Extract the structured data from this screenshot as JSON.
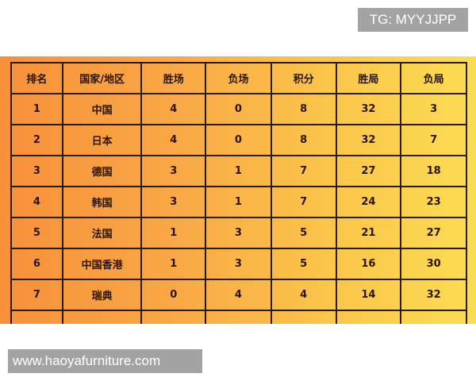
{
  "watermark_top": "TG: MYYJJPP",
  "watermark_bottom": "www.haoyafurniture.com",
  "colors": {
    "gradient_left": "#f7903a",
    "gradient_right": "#fbdd52",
    "watermark_bg": "#a3a3a3"
  },
  "table": {
    "headers": [
      "排名",
      "国家/地区",
      "胜场",
      "负场",
      "积分",
      "胜局",
      "负局"
    ],
    "rows": [
      [
        "1",
        "中国",
        "4",
        "0",
        "8",
        "32",
        "3"
      ],
      [
        "2",
        "日本",
        "4",
        "0",
        "8",
        "32",
        "7"
      ],
      [
        "3",
        "德国",
        "3",
        "1",
        "7",
        "27",
        "18"
      ],
      [
        "4",
        "韩国",
        "3",
        "1",
        "7",
        "24",
        "23"
      ],
      [
        "5",
        "法国",
        "1",
        "3",
        "5",
        "21",
        "27"
      ],
      [
        "6",
        "中国香港",
        "1",
        "3",
        "5",
        "16",
        "30"
      ],
      [
        "7",
        "瑞典",
        "0",
        "4",
        "4",
        "14",
        "32"
      ]
    ]
  }
}
